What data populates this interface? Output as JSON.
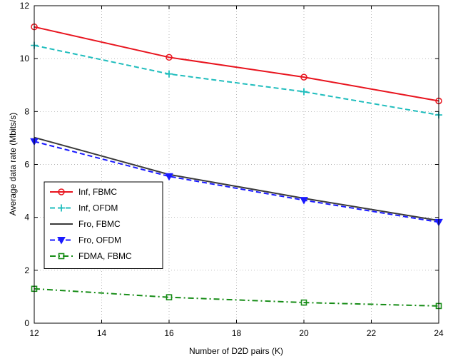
{
  "chart_data": {
    "type": "line",
    "title": "",
    "xlabel": "Number of D2D pairs (K)",
    "ylabel": "Average data rate (Mbits/s)",
    "xlim": [
      12,
      24
    ],
    "ylim": [
      0,
      12
    ],
    "xticks": [
      12,
      14,
      16,
      18,
      20,
      22,
      24
    ],
    "yticks": [
      0,
      2,
      4,
      6,
      8,
      10,
      12
    ],
    "grid": true,
    "legend_position": "center-left",
    "series": [
      {
        "name": "Inf, FBMC",
        "color": "#e8141e",
        "line": "solid",
        "marker": "circle",
        "x": [
          12,
          16,
          20,
          24
        ],
        "y": [
          11.2,
          10.05,
          9.3,
          8.4
        ]
      },
      {
        "name": "Inf, OFDM",
        "color": "#1fbdbd",
        "line": "dashed",
        "marker": "plus",
        "x": [
          12,
          16,
          20,
          24
        ],
        "y": [
          10.5,
          9.42,
          8.75,
          7.87
        ]
      },
      {
        "name": "Fro, FBMC",
        "color": "#3a3a3a",
        "line": "solid",
        "marker": "none",
        "x": [
          12,
          16,
          20,
          24
        ],
        "y": [
          7.02,
          5.62,
          4.72,
          3.88
        ]
      },
      {
        "name": "Fro, OFDM",
        "color": "#1a1aff",
        "line": "dashed",
        "marker": "triangle-down",
        "x": [
          12,
          16,
          20,
          24
        ],
        "y": [
          6.87,
          5.55,
          4.65,
          3.82
        ]
      },
      {
        "name": "FDMA, FBMC",
        "color": "#168c16",
        "line": "dashdot",
        "marker": "square",
        "x": [
          12,
          16,
          20,
          24
        ],
        "y": [
          1.3,
          0.98,
          0.78,
          0.65
        ]
      }
    ]
  }
}
